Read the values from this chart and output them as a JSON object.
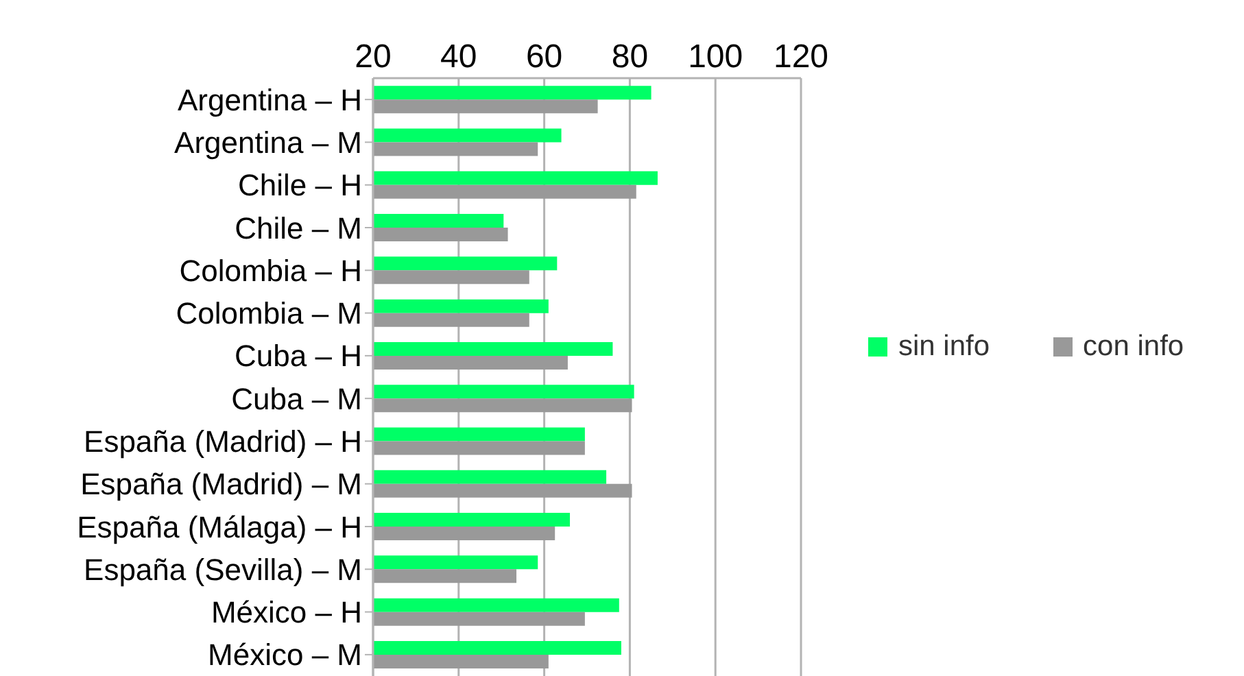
{
  "chart_data": {
    "type": "bar",
    "orientation": "horizontal",
    "categories": [
      "Argentina – H",
      "Argentina – M",
      "Chile – H",
      "Chile – M",
      "Colombia – H",
      "Colombia – M",
      "Cuba – H",
      "Cuba – M",
      "España (Madrid) – H",
      "España (Madrid) – M",
      "España (Málaga) – H",
      "España (Sevilla) – M",
      "México – H",
      "México – M"
    ],
    "series": [
      {
        "name": "sin info",
        "color": "#00ff66",
        "values": [
          85,
          64,
          86.5,
          50.5,
          63,
          61,
          76,
          81,
          69.5,
          74.5,
          66,
          58.5,
          77.5,
          78
        ]
      },
      {
        "name": "con info",
        "color": "#999999",
        "values": [
          72.5,
          58.5,
          81.5,
          51.5,
          56.5,
          56.5,
          65.5,
          80.5,
          69.5,
          80.5,
          62.5,
          53.5,
          69.5,
          61
        ]
      }
    ],
    "xlim": [
      20,
      120
    ],
    "xticks": [
      20,
      40,
      60,
      80,
      100,
      120
    ],
    "grid": "x",
    "legend": "right"
  }
}
